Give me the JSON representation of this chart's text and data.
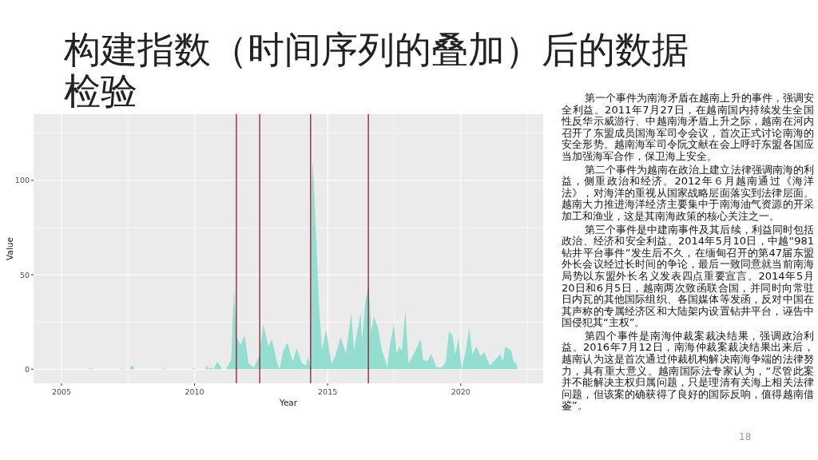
{
  "chart_data": {
    "type": "area",
    "title": "构建指数（时间序列的叠加）后的数据检验",
    "xlabel": "Year",
    "ylabel": "Value",
    "color": "#94ddd1",
    "grid": true,
    "xlim": [
      2003.95,
      2023.1
    ],
    "ylim": [
      -7.5,
      135
    ],
    "xticks": [
      2005,
      {
        "value": 2007.5,
        "label": null
      },
      2010,
      {
        "value": 2012.5,
        "label": null
      },
      2015,
      {
        "value": 2017.5,
        "label": null
      },
      2020,
      {
        "value": 2022.5,
        "label": null
      }
    ],
    "yticks": [
      0,
      {
        "value": 25,
        "label": null
      },
      50,
      {
        "value": 75,
        "label": null
      },
      100,
      {
        "value": 125,
        "label": null
      }
    ],
    "x": [
      2006.0,
      2006.08,
      2006.2,
      2007.2,
      2007.28,
      2007.4,
      2007.55,
      2007.65,
      2007.75,
      2008.8,
      2008.88,
      2008.96,
      2009.9,
      2009.98,
      2010.06,
      2010.4,
      2010.46,
      2010.55,
      2010.63,
      2010.72,
      2010.85,
      2010.95,
      2011.03,
      2011.18,
      2011.38,
      2011.48,
      2011.58,
      2011.73,
      2011.88,
      2012.03,
      2012.23,
      2012.43,
      2012.58,
      2012.78,
      2012.9,
      2013.09,
      2013.19,
      2013.34,
      2013.49,
      2013.69,
      2013.84,
      2014.04,
      2014.19,
      2014.27,
      2014.34,
      2014.39,
      2014.44,
      2014.54,
      2014.69,
      2014.79,
      2014.94,
      2015.14,
      2015.29,
      2015.49,
      2015.69,
      2015.89,
      2015.99,
      2016.24,
      2016.29,
      2016.42,
      2016.54,
      2016.64,
      2016.74,
      2016.89,
      2017.04,
      2017.24,
      2017.34,
      2017.49,
      2017.59,
      2017.69,
      2017.79,
      2017.92,
      2018.04,
      2018.24,
      2018.34,
      2018.49,
      2018.59,
      2018.74,
      2018.89,
      2019.09,
      2019.29,
      2019.44,
      2019.56,
      2019.69,
      2019.79,
      2019.92,
      2020.04,
      2020.19,
      2020.32,
      2020.44,
      2020.59,
      2020.74,
      2020.89,
      2021.09,
      2021.24,
      2021.49,
      2021.59,
      2021.67,
      2021.89,
      2021.99,
      2022.09,
      2022.14
    ],
    "values": [
      0,
      0.5,
      0,
      0,
      0.5,
      0,
      0,
      2,
      0,
      0,
      0.5,
      0,
      0,
      0.5,
      0,
      0,
      2,
      0,
      1,
      0,
      4,
      2,
      0,
      0,
      5,
      43,
      17,
      13,
      18,
      3,
      1,
      7,
      24,
      12,
      16,
      4,
      0,
      10,
      14,
      4,
      11,
      3,
      2,
      7,
      1,
      97,
      110,
      80,
      30,
      10,
      21,
      3,
      7,
      17,
      8,
      30,
      10,
      30,
      15,
      36,
      45,
      20,
      28,
      22,
      10,
      1,
      13,
      24,
      8,
      12,
      10,
      31,
      3,
      8,
      11,
      16,
      5,
      4,
      8,
      1,
      1,
      4,
      20,
      18,
      8,
      16,
      0,
      10,
      22,
      8,
      12,
      7,
      9,
      2,
      4,
      8,
      4,
      12,
      10,
      4,
      3,
      0
    ],
    "ref_lines": [
      {
        "axis": "x",
        "value": 2011.57,
        "color": "#8b1a2b"
      },
      {
        "axis": "x",
        "value": 2012.45,
        "color": "#8b1a2b"
      },
      {
        "axis": "x",
        "value": 2014.36,
        "color": "#8b1a2b"
      },
      {
        "axis": "x",
        "value": 2016.53,
        "color": "#8b1a2b"
      }
    ],
    "annotations": [
      "第一个事件为南海矛盾在越南上升的事件，强调安全利益。2011年7月27日，在越南国内持续发生全国性反华示威游行、中越南海矛盾上升之际，越南在河内召开了东盟成员国海军司令会议，首次正式讨论南海的安全形势。越南海军司令阮文献在会上呼吁东盟各国应当加强海军合作，保卫海上安全。",
      "第二个事件为越南在政治上建立法律强调南海的利益，侧重政治和经济。2012年６月越南通过《海洋法》，对海洋的重视从国家战略层面落实到法律层面。越南大力推进海洋经济主要集中于南海油气资源的开采加工和渔业，这是其南海政策的核心关注之一。",
      "第三个事件是中建南事件及其后续，利益同时包括政治、经济和安全利益。2014年5月10日，中越“981钻井平台事件”发生后不久，在缅甸召开的第47届东盟外长会议经过长时间的争论，最后一致同意就当前南海局势以东盟外长名义发表四点重要宣言。2014年5月20日和6月5日，越南两次致函联合国，并同时向常驻日内瓦的其他国际组织、各国媒体等发函，反对中国在其声称的专属经济区和大陆架内设置钻井平台，诬告中国侵犯其“主权”。",
      "第四个事件是南海仲裁案裁决结果，强调政治利益。2016年7月12日，南海仲裁案裁决结果出来后，越南认为这是首次通过仲裁机构解决南海争端的法律努力，具有重大意义。越南国际法专家认为，“尽管此案并不能解决主权归属问题，只是理清有关海上相关法律问题，但该案的确获得了良好的国际反响，值得越南借鉴”。",
      "18"
    ]
  }
}
